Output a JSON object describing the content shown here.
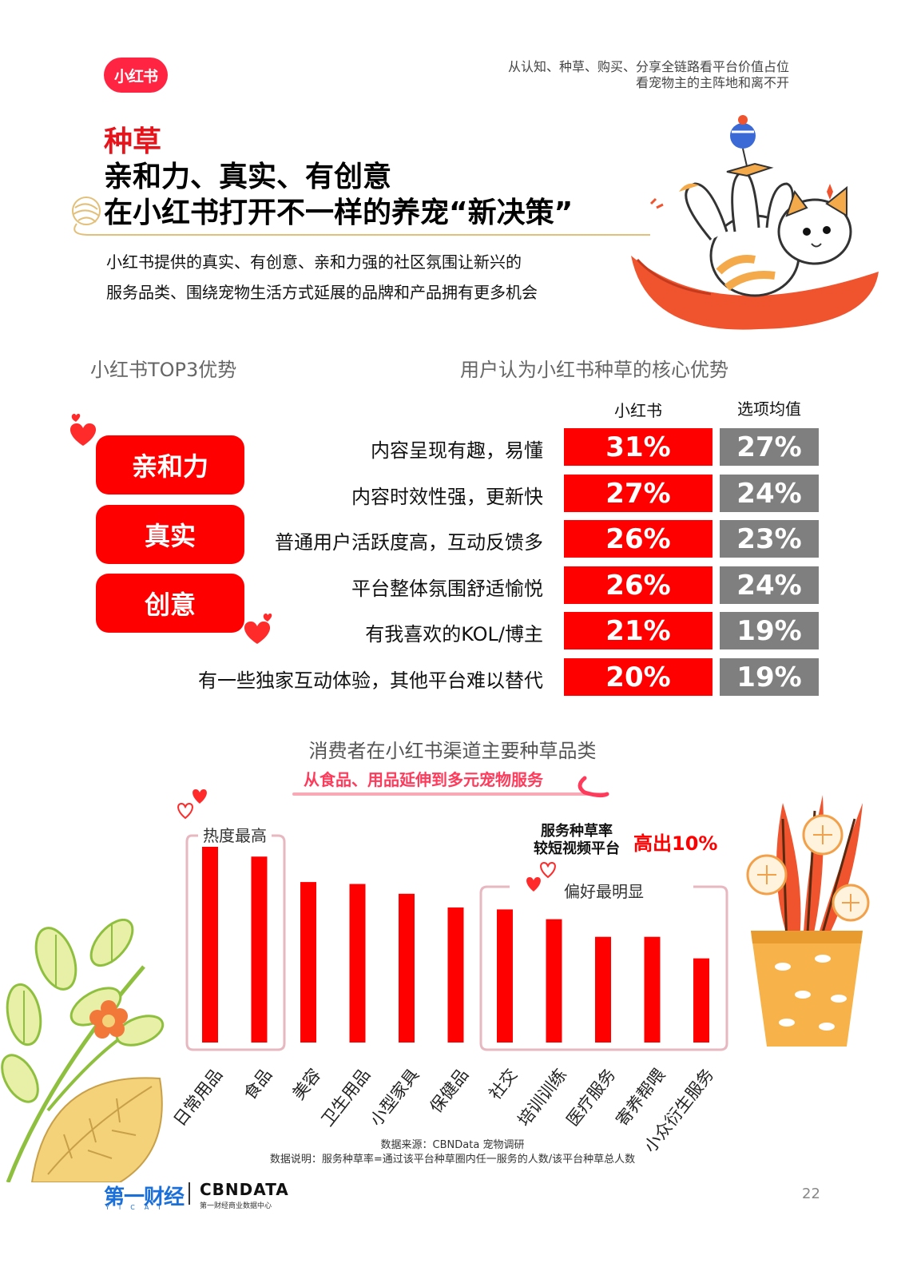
{
  "header": {
    "logo_text": "小红书",
    "tagline_1": "从认知、种草、购买、分享全链路看平台价值占位",
    "tagline_2": "看宠物主的主阵地和离不开"
  },
  "title": {
    "red": "种草",
    "line1": "亲和力、真实、有创意",
    "line2": "在小红书打开不一样的养宠“新决策”"
  },
  "intro": {
    "line1": "小红书提供的真实、有创意、亲和力强的社区氛围让新兴的",
    "line2": "服务品类、围绕宠物生活方式延展的品牌和产品拥有更多机会"
  },
  "top3": {
    "title": "小红书TOP3优势",
    "items": [
      "亲和力",
      "真实",
      "创意"
    ]
  },
  "advantages": {
    "title": "用户认为小红书种草的核心优势",
    "col_xhs": "小红书",
    "col_avg": "选项均值",
    "rows": [
      {
        "label": "内容呈现有趣，易懂",
        "xhs": "31%",
        "avg": "27%"
      },
      {
        "label": "内容时效性强，更新快",
        "xhs": "27%",
        "avg": "24%"
      },
      {
        "label": "普通用户活跃度高，互动反馈多",
        "xhs": "26%",
        "avg": "23%"
      },
      {
        "label": "平台整体氛围舒适愉悦",
        "xhs": "26%",
        "avg": "24%"
      },
      {
        "label": "有我喜欢的KOL/博主",
        "xhs": "21%",
        "avg": "19%"
      },
      {
        "label": "有一些独家互动体验，其他平台难以替代",
        "xhs": "20%",
        "avg": "19%"
      }
    ]
  },
  "category_chart": {
    "title": "消费者在小红书渠道主要种草品类",
    "subtitle": "从食品、用品延伸到多元宠物服务",
    "anno_hot": "热度最高",
    "anno_pref": "偏好最明显",
    "anno_service_1": "服务种草率",
    "anno_service_2": "较短视频平台",
    "anno_higher": "高出10%"
  },
  "chart_data": {
    "type": "bar",
    "categories": [
      "日常用品",
      "食品",
      "美容",
      "卫生用品",
      "小型家具",
      "保健品",
      "社交",
      "培训训练",
      "医疗服务",
      "寄养帮喂",
      "小众衍生服务"
    ],
    "values": [
      100,
      95,
      82,
      81,
      76,
      69,
      68,
      63,
      54,
      54,
      43
    ],
    "ylim": [
      0,
      100
    ],
    "color": "#ff0000"
  },
  "footer": {
    "source": "数据来源：CBNData 宠物调研",
    "note": "数据说明：服务种草率=通过该平台种草圈内任一服务的人数/该平台种草总人数",
    "brand1": "第一财经",
    "brand1_sub": "YICAI",
    "brand2": "CBNDATA",
    "brand2_sub": "第一财经商业数据中心",
    "page": "22"
  },
  "colors": {
    "brand_red": "#ff2442",
    "accent_red": "#ff0000",
    "gray": "#7f7f7f",
    "gold": "#e3c07a"
  }
}
